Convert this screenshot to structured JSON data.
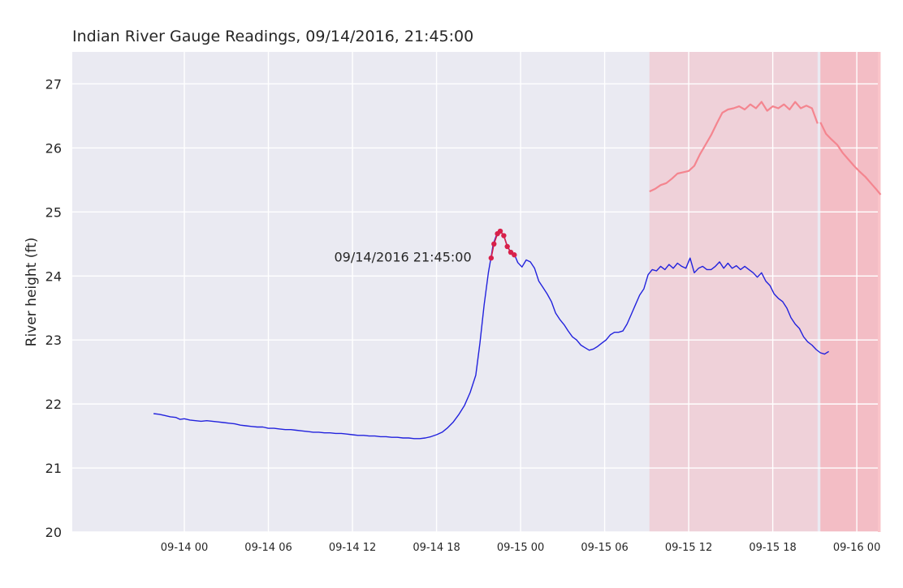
{
  "chart_data": {
    "type": "line",
    "title": "Indian River Gauge Readings, 09/14/2016, 21:45:00",
    "xlabel": "",
    "ylabel": "River height (ft)",
    "x_time_unit": "hours since 09-14 00",
    "xlim": [
      -8.0,
      49.5
    ],
    "ylim": [
      20,
      27.5
    ],
    "grid": true,
    "x_ticks": [
      {
        "h": 0,
        "label": "09-14 00"
      },
      {
        "h": 6,
        "label": "09-14 06"
      },
      {
        "h": 12,
        "label": "09-14 12"
      },
      {
        "h": 18,
        "label": "09-14 18"
      },
      {
        "h": 24,
        "label": "09-15 00"
      },
      {
        "h": 30,
        "label": "09-15 06"
      },
      {
        "h": 36,
        "label": "09-15 12"
      },
      {
        "h": 42,
        "label": "09-15 18"
      },
      {
        "h": 48,
        "label": "09-16 00"
      }
    ],
    "y_ticks": [
      20,
      21,
      22,
      23,
      24,
      25,
      26,
      27
    ],
    "annotation": {
      "text": "09/14/2016 21:45:00",
      "x": 20.5,
      "y": 24.3
    },
    "shaded_regions": [
      {
        "x0": 33.2,
        "x1": 45.2,
        "color": "#f4b8c0",
        "opacity": 0.5
      },
      {
        "x0": 45.4,
        "x1": 49.7,
        "color": "#f7a5ac",
        "opacity": 0.65
      }
    ],
    "series": [
      {
        "color": "#2222dd",
        "role": "observed",
        "points": [
          [
            -2.2,
            21.85
          ],
          [
            -1.8,
            21.84
          ],
          [
            -1.4,
            21.82
          ],
          [
            -1.0,
            21.8
          ],
          [
            -0.6,
            21.79
          ],
          [
            -0.3,
            21.76
          ],
          [
            0,
            21.77
          ],
          [
            0.4,
            21.75
          ],
          [
            0.8,
            21.74
          ],
          [
            1.2,
            21.73
          ],
          [
            1.6,
            21.74
          ],
          [
            2.0,
            21.73
          ],
          [
            2.4,
            21.72
          ],
          [
            2.8,
            21.71
          ],
          [
            3.2,
            21.7
          ],
          [
            3.6,
            21.69
          ],
          [
            4.0,
            21.67
          ],
          [
            4.4,
            21.66
          ],
          [
            4.8,
            21.65
          ],
          [
            5.2,
            21.64
          ],
          [
            5.6,
            21.64
          ],
          [
            6.0,
            21.62
          ],
          [
            6.4,
            21.62
          ],
          [
            6.8,
            21.61
          ],
          [
            7.2,
            21.6
          ],
          [
            7.6,
            21.6
          ],
          [
            8.0,
            21.59
          ],
          [
            8.4,
            21.58
          ],
          [
            8.8,
            21.57
          ],
          [
            9.2,
            21.56
          ],
          [
            9.6,
            21.56
          ],
          [
            10.0,
            21.55
          ],
          [
            10.4,
            21.55
          ],
          [
            10.8,
            21.54
          ],
          [
            11.2,
            21.54
          ],
          [
            11.6,
            21.53
          ],
          [
            12.0,
            21.52
          ],
          [
            12.4,
            21.51
          ],
          [
            12.8,
            21.51
          ],
          [
            13.2,
            21.5
          ],
          [
            13.6,
            21.5
          ],
          [
            14.0,
            21.49
          ],
          [
            14.4,
            21.49
          ],
          [
            14.8,
            21.48
          ],
          [
            15.2,
            21.48
          ],
          [
            15.6,
            21.47
          ],
          [
            16.0,
            21.47
          ],
          [
            16.4,
            21.46
          ],
          [
            16.8,
            21.46
          ],
          [
            17.2,
            21.47
          ],
          [
            17.6,
            21.49
          ],
          [
            18.0,
            21.52
          ],
          [
            18.4,
            21.56
          ],
          [
            18.8,
            21.63
          ],
          [
            19.2,
            21.72
          ],
          [
            19.6,
            21.84
          ],
          [
            20.0,
            21.98
          ],
          [
            20.4,
            22.18
          ],
          [
            20.8,
            22.45
          ],
          [
            21.1,
            22.95
          ],
          [
            21.4,
            23.55
          ],
          [
            21.7,
            24.05
          ],
          [
            21.9,
            24.3
          ],
          [
            22.05,
            24.5
          ],
          [
            22.3,
            24.65
          ],
          [
            22.55,
            24.7
          ],
          [
            22.8,
            24.63
          ],
          [
            23.05,
            24.47
          ],
          [
            23.3,
            24.37
          ],
          [
            23.55,
            24.34
          ],
          [
            23.8,
            24.21
          ],
          [
            24.1,
            24.14
          ],
          [
            24.4,
            24.25
          ],
          [
            24.7,
            24.22
          ],
          [
            25.0,
            24.12
          ],
          [
            25.3,
            23.92
          ],
          [
            25.6,
            23.82
          ],
          [
            25.9,
            23.72
          ],
          [
            26.2,
            23.6
          ],
          [
            26.5,
            23.42
          ],
          [
            26.8,
            23.32
          ],
          [
            27.1,
            23.24
          ],
          [
            27.4,
            23.14
          ],
          [
            27.7,
            23.05
          ],
          [
            28.0,
            23.0
          ],
          [
            28.3,
            22.92
          ],
          [
            28.6,
            22.88
          ],
          [
            28.9,
            22.84
          ],
          [
            29.2,
            22.86
          ],
          [
            29.5,
            22.9
          ],
          [
            29.8,
            22.95
          ],
          [
            30.1,
            23.0
          ],
          [
            30.4,
            23.08
          ],
          [
            30.7,
            23.12
          ],
          [
            31.0,
            23.12
          ],
          [
            31.3,
            23.14
          ],
          [
            31.6,
            23.25
          ],
          [
            31.9,
            23.4
          ],
          [
            32.2,
            23.55
          ],
          [
            32.5,
            23.7
          ],
          [
            32.8,
            23.8
          ],
          [
            33.1,
            24.02
          ],
          [
            33.4,
            24.1
          ],
          [
            33.7,
            24.08
          ],
          [
            34.0,
            24.15
          ],
          [
            34.3,
            24.1
          ],
          [
            34.6,
            24.18
          ],
          [
            34.9,
            24.12
          ],
          [
            35.2,
            24.2
          ],
          [
            35.5,
            24.15
          ],
          [
            35.8,
            24.12
          ],
          [
            36.1,
            24.28
          ],
          [
            36.4,
            24.05
          ],
          [
            36.7,
            24.12
          ],
          [
            37.0,
            24.15
          ],
          [
            37.3,
            24.1
          ],
          [
            37.6,
            24.1
          ],
          [
            37.9,
            24.15
          ],
          [
            38.2,
            24.22
          ],
          [
            38.5,
            24.12
          ],
          [
            38.8,
            24.2
          ],
          [
            39.1,
            24.12
          ],
          [
            39.4,
            24.16
          ],
          [
            39.7,
            24.1
          ],
          [
            40.0,
            24.15
          ],
          [
            40.3,
            24.1
          ],
          [
            40.6,
            24.05
          ],
          [
            40.9,
            23.98
          ],
          [
            41.2,
            24.05
          ],
          [
            41.5,
            23.92
          ],
          [
            41.8,
            23.85
          ],
          [
            42.1,
            23.72
          ],
          [
            42.4,
            23.65
          ],
          [
            42.7,
            23.6
          ],
          [
            43.0,
            23.5
          ],
          [
            43.3,
            23.35
          ],
          [
            43.6,
            23.25
          ],
          [
            43.9,
            23.18
          ],
          [
            44.2,
            23.05
          ],
          [
            44.5,
            22.97
          ],
          [
            44.8,
            22.92
          ],
          [
            45.1,
            22.85
          ],
          [
            45.4,
            22.8
          ],
          [
            45.7,
            22.78
          ],
          [
            46.0,
            22.82
          ]
        ]
      },
      {
        "color": "#d8204a",
        "role": "highlight-points",
        "points": [
          [
            21.9,
            24.28
          ],
          [
            22.1,
            24.5
          ],
          [
            22.35,
            24.66
          ],
          [
            22.55,
            24.7
          ],
          [
            22.8,
            24.63
          ],
          [
            23.05,
            24.46
          ],
          [
            23.3,
            24.37
          ],
          [
            23.55,
            24.33
          ]
        ]
      },
      {
        "color": "#f4858f",
        "role": "forecast",
        "points": [
          [
            33.2,
            25.32
          ],
          [
            33.6,
            25.36
          ],
          [
            34.0,
            25.42
          ],
          [
            34.4,
            25.45
          ],
          [
            34.8,
            25.52
          ],
          [
            35.2,
            25.6
          ],
          [
            35.6,
            25.62
          ],
          [
            36.0,
            25.64
          ],
          [
            36.4,
            25.72
          ],
          [
            36.8,
            25.9
          ],
          [
            37.2,
            26.05
          ],
          [
            37.6,
            26.2
          ],
          [
            38.0,
            26.38
          ],
          [
            38.4,
            26.55
          ],
          [
            38.8,
            26.6
          ],
          [
            39.2,
            26.62
          ],
          [
            39.6,
            26.65
          ],
          [
            40.0,
            26.6
          ],
          [
            40.4,
            26.68
          ],
          [
            40.8,
            26.62
          ],
          [
            41.2,
            26.72
          ],
          [
            41.6,
            26.58
          ],
          [
            42.0,
            26.65
          ],
          [
            42.4,
            26.62
          ],
          [
            42.8,
            26.68
          ],
          [
            43.2,
            26.6
          ],
          [
            43.6,
            26.72
          ],
          [
            44.0,
            26.62
          ],
          [
            44.4,
            26.66
          ],
          [
            44.8,
            26.62
          ],
          [
            45.2,
            26.38
          ]
        ]
      },
      {
        "color": "#f4858f",
        "role": "forecast",
        "points": [
          [
            45.4,
            26.4
          ],
          [
            45.8,
            26.22
          ],
          [
            46.2,
            26.13
          ],
          [
            46.6,
            26.05
          ],
          [
            47.0,
            25.92
          ],
          [
            47.4,
            25.82
          ],
          [
            47.8,
            25.72
          ],
          [
            48.2,
            25.63
          ],
          [
            48.6,
            25.55
          ],
          [
            49.0,
            25.45
          ],
          [
            49.4,
            25.35
          ],
          [
            49.7,
            25.27
          ]
        ]
      }
    ]
  }
}
